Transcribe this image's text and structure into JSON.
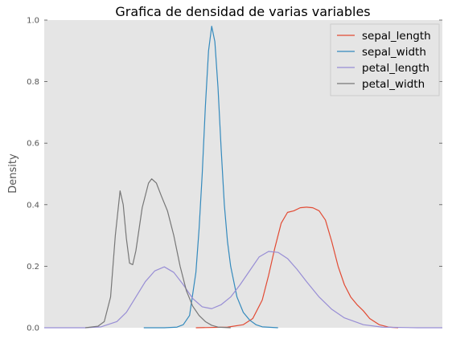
{
  "chart_data": {
    "type": "line",
    "title": "Grafica de densidad de varias variables",
    "xlabel": "",
    "ylabel": "Density",
    "xlim": [
      -2.3,
      10.3
    ],
    "ylim": [
      0.0,
      1.0
    ],
    "yticks": [
      0.0,
      0.2,
      0.4,
      0.6,
      0.8,
      1.0
    ],
    "yticklabels": [
      "0.0",
      "0.2",
      "0.4",
      "0.6",
      "0.8",
      "1.0"
    ],
    "grid": false,
    "legend_position": "top-right",
    "series": [
      {
        "name": "sepal_length",
        "color": "#E24A33",
        "x": [
          2.5,
          3.5,
          4.0,
          4.3,
          4.6,
          4.8,
          5.0,
          5.2,
          5.4,
          5.6,
          5.8,
          6.0,
          6.2,
          6.4,
          6.6,
          6.8,
          7.0,
          7.2,
          7.4,
          7.6,
          7.8,
          8.0,
          8.3,
          8.6,
          8.9
        ],
        "y": [
          0.0,
          0.002,
          0.01,
          0.03,
          0.09,
          0.17,
          0.26,
          0.34,
          0.375,
          0.38,
          0.39,
          0.392,
          0.39,
          0.38,
          0.35,
          0.28,
          0.2,
          0.14,
          0.1,
          0.075,
          0.055,
          0.03,
          0.01,
          0.002,
          0.0
        ]
      },
      {
        "name": "sepal_width",
        "color": "#348ABD",
        "x": [
          0.85,
          1.5,
          1.9,
          2.1,
          2.3,
          2.5,
          2.6,
          2.7,
          2.8,
          2.9,
          3.0,
          3.1,
          3.2,
          3.3,
          3.4,
          3.5,
          3.6,
          3.8,
          4.0,
          4.2,
          4.4,
          4.6,
          5.1
        ],
        "y": [
          0.0,
          0.0,
          0.002,
          0.01,
          0.04,
          0.18,
          0.32,
          0.5,
          0.72,
          0.9,
          0.98,
          0.93,
          0.78,
          0.58,
          0.4,
          0.28,
          0.2,
          0.1,
          0.05,
          0.025,
          0.01,
          0.003,
          0.0
        ]
      },
      {
        "name": "petal_length",
        "color": "#988ED5",
        "x": [
          -2.3,
          -1.0,
          -0.5,
          0.0,
          0.3,
          0.6,
          0.9,
          1.2,
          1.5,
          1.8,
          2.1,
          2.4,
          2.7,
          3.0,
          3.3,
          3.6,
          3.9,
          4.2,
          4.5,
          4.8,
          5.1,
          5.4,
          5.7,
          6.0,
          6.4,
          6.8,
          7.2,
          7.8,
          8.4,
          9.5,
          10.3
        ],
        "y": [
          0.0,
          0.0,
          0.003,
          0.02,
          0.05,
          0.1,
          0.15,
          0.185,
          0.198,
          0.18,
          0.14,
          0.095,
          0.068,
          0.062,
          0.075,
          0.1,
          0.14,
          0.185,
          0.23,
          0.248,
          0.245,
          0.225,
          0.19,
          0.15,
          0.1,
          0.06,
          0.032,
          0.01,
          0.002,
          0.0,
          0.0
        ]
      },
      {
        "name": "petal_width",
        "color": "#777777",
        "x": [
          -1.0,
          -0.6,
          -0.4,
          -0.2,
          -0.05,
          0.1,
          0.2,
          0.3,
          0.4,
          0.5,
          0.6,
          0.8,
          1.0,
          1.1,
          1.25,
          1.4,
          1.6,
          1.8,
          2.0,
          2.2,
          2.4,
          2.6,
          2.8,
          3.0,
          3.2,
          3.6
        ],
        "y": [
          0.0,
          0.005,
          0.02,
          0.1,
          0.3,
          0.445,
          0.4,
          0.29,
          0.21,
          0.205,
          0.25,
          0.39,
          0.47,
          0.484,
          0.47,
          0.43,
          0.38,
          0.3,
          0.2,
          0.12,
          0.07,
          0.04,
          0.02,
          0.008,
          0.002,
          0.0
        ]
      }
    ]
  }
}
